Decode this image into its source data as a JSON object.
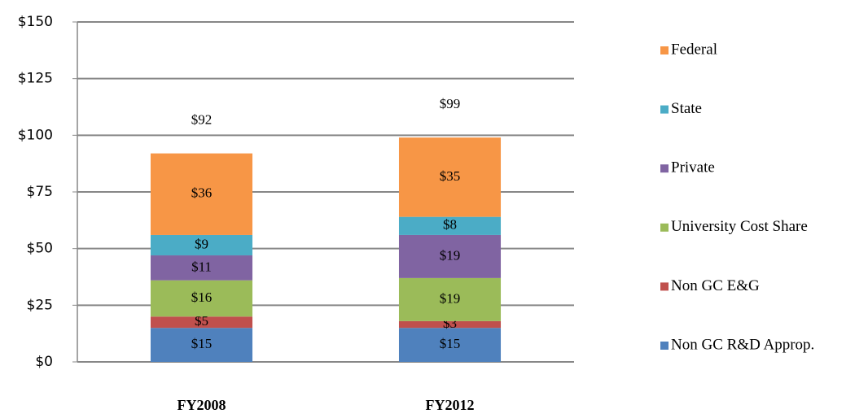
{
  "chart_data": {
    "type": "stacked_bar",
    "categories": [
      "FY2008",
      "FY2012"
    ],
    "series": [
      {
        "name": "Non GC R&D Approp.",
        "color": "#4f81bd",
        "values": [
          15,
          15
        ],
        "value_labels": [
          "$15",
          "$15"
        ]
      },
      {
        "name": "Non GC E&G",
        "color": "#c0504d",
        "values": [
          5,
          3
        ],
        "value_labels": [
          "$5",
          "$3"
        ]
      },
      {
        "name": "University Cost Share",
        "color": "#9bbb59",
        "values": [
          16,
          19
        ],
        "value_labels": [
          "$16",
          "$19"
        ]
      },
      {
        "name": "Private",
        "color": "#8064a2",
        "values": [
          11,
          19
        ],
        "value_labels": [
          "$11",
          "$19"
        ]
      },
      {
        "name": "State",
        "color": "#4bacc6",
        "values": [
          9,
          8
        ],
        "value_labels": [
          "$9",
          "$8"
        ]
      },
      {
        "name": "Federal",
        "color": "#f79646",
        "values": [
          36,
          35
        ],
        "value_labels": [
          "$36",
          "$35"
        ]
      }
    ],
    "totals": [
      92,
      99
    ],
    "total_labels": [
      "$92",
      "$99"
    ],
    "ylim": [
      0,
      150
    ],
    "yticks": [
      {
        "value": 0,
        "label": "$0"
      },
      {
        "value": 25,
        "label": "$25"
      },
      {
        "value": 50,
        "label": "$50"
      },
      {
        "value": 75,
        "label": "$75"
      },
      {
        "value": 100,
        "label": "$100"
      },
      {
        "value": 125,
        "label": "$125"
      },
      {
        "value": 150,
        "label": "$150"
      }
    ],
    "grid": true,
    "legend": "right"
  }
}
